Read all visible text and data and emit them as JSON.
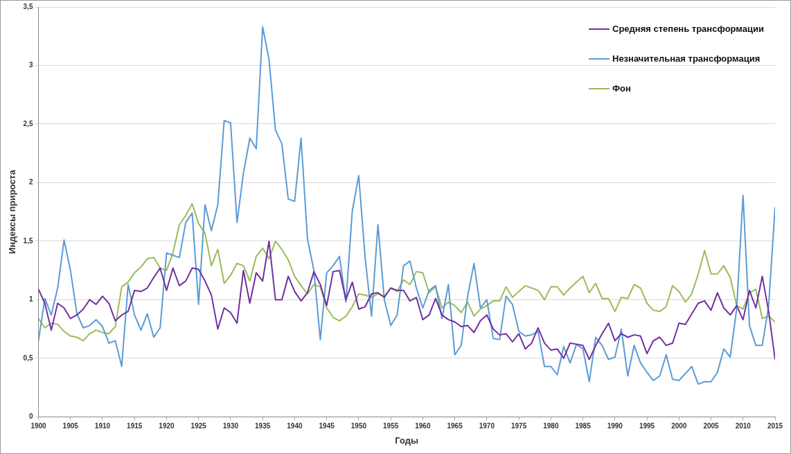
{
  "chart_data": {
    "type": "line",
    "xlabel": "Годы",
    "ylabel": "Индексы прироста",
    "x": [
      1900,
      1901,
      1902,
      1903,
      1904,
      1905,
      1906,
      1907,
      1908,
      1909,
      1910,
      1911,
      1912,
      1913,
      1914,
      1915,
      1916,
      1917,
      1918,
      1919,
      1920,
      1921,
      1922,
      1923,
      1924,
      1925,
      1926,
      1927,
      1928,
      1929,
      1930,
      1931,
      1932,
      1933,
      1934,
      1935,
      1936,
      1937,
      1938,
      1939,
      1940,
      1941,
      1942,
      1943,
      1944,
      1945,
      1946,
      1947,
      1948,
      1949,
      1950,
      1951,
      1952,
      1953,
      1954,
      1955,
      1956,
      1957,
      1958,
      1959,
      1960,
      1961,
      1962,
      1963,
      1964,
      1965,
      1966,
      1967,
      1968,
      1969,
      1970,
      1971,
      1972,
      1973,
      1974,
      1975,
      1976,
      1977,
      1978,
      1979,
      1980,
      1981,
      1982,
      1983,
      1984,
      1985,
      1986,
      1987,
      1988,
      1989,
      1990,
      1991,
      1992,
      1993,
      1994,
      1995,
      1996,
      1997,
      1998,
      1999,
      2000,
      2001,
      2002,
      2003,
      2004,
      2005,
      2006,
      2007,
      2008,
      2009,
      2010,
      2011,
      2012,
      2013,
      2014,
      2015
    ],
    "series": [
      {
        "name": "Средняя степень трансформации",
        "color": "#7030a0",
        "values": [
          1.09,
          0.97,
          0.74,
          0.97,
          0.93,
          0.84,
          0.87,
          0.92,
          1.0,
          0.96,
          1.03,
          0.97,
          0.82,
          0.87,
          0.9,
          1.08,
          1.07,
          1.1,
          1.19,
          1.27,
          1.08,
          1.27,
          1.12,
          1.16,
          1.27,
          1.26,
          1.16,
          1.04,
          0.75,
          0.93,
          0.89,
          0.8,
          1.25,
          0.97,
          1.23,
          1.16,
          1.5,
          1.0,
          1.0,
          1.2,
          1.07,
          0.99,
          1.06,
          1.24,
          1.13,
          0.95,
          1.24,
          1.25,
          1.0,
          1.15,
          0.92,
          0.94,
          1.05,
          1.06,
          1.02,
          1.1,
          1.08,
          1.08,
          0.99,
          1.02,
          0.83,
          0.87,
          1.01,
          0.87,
          0.83,
          0.81,
          0.77,
          0.78,
          0.72,
          0.82,
          0.87,
          0.75,
          0.7,
          0.71,
          0.64,
          0.71,
          0.58,
          0.63,
          0.76,
          0.63,
          0.57,
          0.58,
          0.5,
          0.63,
          0.62,
          0.61,
          0.49,
          0.61,
          0.71,
          0.8,
          0.65,
          0.71,
          0.68,
          0.7,
          0.69,
          0.54,
          0.65,
          0.68,
          0.61,
          0.63,
          0.8,
          0.79,
          0.88,
          0.97,
          0.99,
          0.91,
          1.06,
          0.93,
          0.87,
          0.95,
          0.83,
          1.08,
          0.93,
          1.2,
          0.9,
          0.49
        ]
      },
      {
        "name": "Незначительная трансформация",
        "color": "#5b9bd5",
        "values": [
          0.65,
          1.01,
          0.87,
          1.1,
          1.51,
          1.25,
          0.88,
          0.76,
          0.78,
          0.83,
          0.77,
          0.63,
          0.65,
          0.43,
          1.13,
          0.87,
          0.74,
          0.88,
          0.68,
          0.76,
          1.4,
          1.38,
          1.36,
          1.66,
          1.74,
          0.96,
          1.81,
          1.59,
          1.81,
          2.53,
          2.51,
          1.66,
          2.08,
          2.38,
          2.29,
          3.33,
          3.05,
          2.45,
          2.33,
          1.86,
          1.84,
          2.38,
          1.52,
          1.25,
          0.66,
          1.23,
          1.29,
          1.37,
          0.98,
          1.76,
          2.06,
          1.36,
          0.86,
          1.64,
          1.0,
          0.78,
          0.87,
          1.29,
          1.33,
          1.1,
          0.93,
          1.08,
          1.12,
          0.84,
          1.13,
          0.53,
          0.61,
          1.03,
          1.31,
          0.93,
          1.0,
          0.67,
          0.66,
          1.03,
          0.96,
          0.73,
          0.69,
          0.7,
          0.73,
          0.43,
          0.43,
          0.36,
          0.6,
          0.46,
          0.62,
          0.58,
          0.3,
          0.68,
          0.61,
          0.49,
          0.51,
          0.75,
          0.35,
          0.61,
          0.46,
          0.38,
          0.31,
          0.35,
          0.53,
          0.32,
          0.31,
          0.37,
          0.43,
          0.28,
          0.3,
          0.3,
          0.38,
          0.58,
          0.51,
          0.92,
          1.89,
          0.78,
          0.61,
          0.61,
          0.95,
          1.79
        ]
      },
      {
        "name": "Фон",
        "color": "#9bbb59",
        "values": [
          0.84,
          0.76,
          0.8,
          0.79,
          0.73,
          0.69,
          0.68,
          0.65,
          0.71,
          0.74,
          0.72,
          0.71,
          0.77,
          1.11,
          1.15,
          1.23,
          1.28,
          1.35,
          1.36,
          1.27,
          1.25,
          1.4,
          1.64,
          1.72,
          1.82,
          1.65,
          1.57,
          1.29,
          1.43,
          1.14,
          1.21,
          1.31,
          1.29,
          1.16,
          1.37,
          1.44,
          1.35,
          1.5,
          1.43,
          1.34,
          1.2,
          1.12,
          1.05,
          1.13,
          1.11,
          0.93,
          0.85,
          0.82,
          0.86,
          0.94,
          1.05,
          1.04,
          1.02,
          1.05,
          1.03,
          1.1,
          1.07,
          1.17,
          1.13,
          1.24,
          1.23,
          1.06,
          1.11,
          0.93,
          0.98,
          0.95,
          0.89,
          0.98,
          0.86,
          0.92,
          0.95,
          0.99,
          0.99,
          1.11,
          1.02,
          1.07,
          1.12,
          1.1,
          1.08,
          1.0,
          1.11,
          1.11,
          1.04,
          1.1,
          1.15,
          1.2,
          1.06,
          1.14,
          1.01,
          1.01,
          0.9,
          1.02,
          1.01,
          1.13,
          1.1,
          0.97,
          0.91,
          0.9,
          0.94,
          1.12,
          1.07,
          0.98,
          1.05,
          1.22,
          1.42,
          1.22,
          1.22,
          1.29,
          1.19,
          0.95,
          0.92,
          1.06,
          1.09,
          0.84,
          0.86,
          0.81
        ]
      }
    ],
    "xlim": [
      1900,
      2015
    ],
    "xticks": [
      1900,
      1905,
      1910,
      1915,
      1920,
      1925,
      1930,
      1935,
      1940,
      1945,
      1950,
      1955,
      1960,
      1965,
      1970,
      1975,
      1980,
      1985,
      1990,
      1995,
      2000,
      2005,
      2010,
      2015
    ],
    "ylim": [
      0,
      3.5
    ],
    "yticks": [
      0,
      {
        "value": 0.5,
        "label": "0,5"
      },
      1,
      {
        "value": 1.5,
        "label": "1,5"
      },
      2,
      {
        "value": 2.5,
        "label": "2,5"
      },
      3,
      {
        "value": 3.5,
        "label": "3,5"
      }
    ],
    "grid": "y",
    "legend": "top right",
    "marker": "none",
    "line_style": "solid"
  }
}
